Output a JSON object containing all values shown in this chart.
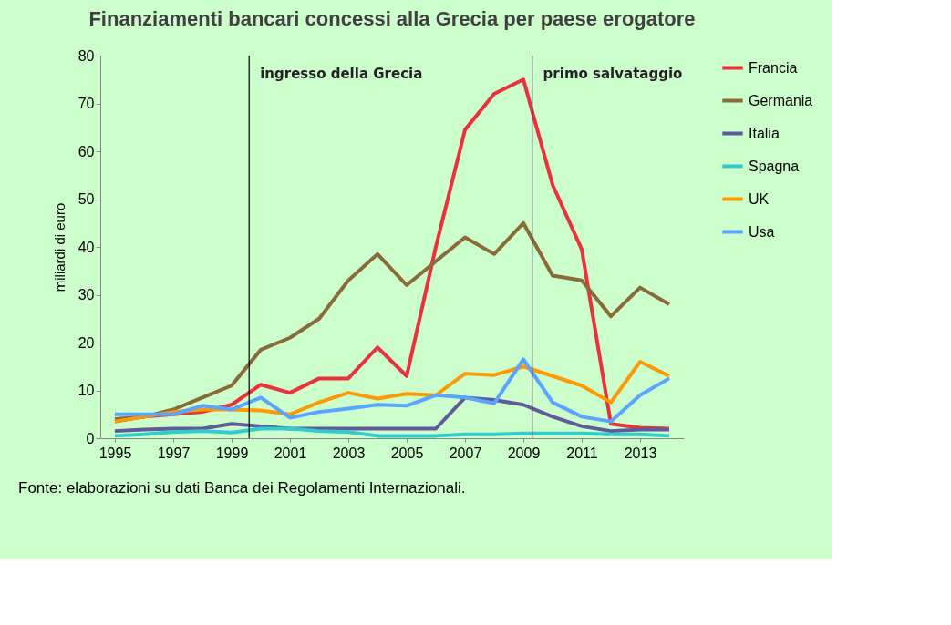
{
  "chart_data": {
    "type": "line",
    "title": "Finanziamenti bancari concessi alla Grecia per paese erogatore",
    "ylabel": "miliardi di euro",
    "x": [
      1995,
      1996,
      1997,
      1998,
      1999,
      2000,
      2001,
      2002,
      2003,
      2004,
      2005,
      2006,
      2007,
      2008,
      2009,
      2010,
      2011,
      2012,
      2013,
      2014
    ],
    "series": [
      {
        "name": "Francia",
        "color": "#e8323c",
        "values": [
          3.5,
          4.5,
          5,
          5.5,
          7,
          11.2,
          9.5,
          12.5,
          12.5,
          19,
          13,
          40,
          64.5,
          72,
          75,
          53,
          39.5,
          3,
          2.2,
          2
        ]
      },
      {
        "name": "Germania",
        "color": "#8b6a3a",
        "values": [
          4,
          4.5,
          6,
          8.5,
          11,
          18.5,
          21,
          25,
          33,
          38.5,
          32,
          37,
          42,
          38.5,
          45,
          34,
          33,
          25.5,
          31.5,
          28
        ]
      },
      {
        "name": "Italia",
        "color": "#5f5a9a",
        "values": [
          1.5,
          1.8,
          2,
          2,
          3,
          2.5,
          2,
          2,
          2,
          2,
          2,
          2,
          8.5,
          8,
          7,
          4.5,
          2.5,
          1.5,
          1.8,
          1.8
        ]
      },
      {
        "name": "Spagna",
        "color": "#33cccc",
        "values": [
          0.5,
          0.8,
          1.3,
          1.5,
          1.2,
          2,
          2,
          1.5,
          1.3,
          0.5,
          0.5,
          0.5,
          0.8,
          0.8,
          1,
          1,
          1,
          0.8,
          0.8,
          0.5
        ]
      },
      {
        "name": "UK",
        "color": "#ff9900",
        "values": [
          3.5,
          4.5,
          5.5,
          6,
          6,
          5.8,
          5,
          7.5,
          9.5,
          8.3,
          9.3,
          9,
          13.5,
          13.2,
          15,
          13,
          11,
          7.5,
          16,
          13
        ]
      },
      {
        "name": "Usa",
        "color": "#5aa5ff",
        "values": [
          5,
          5,
          5,
          6.8,
          6,
          8.5,
          4.3,
          5.5,
          6.2,
          7,
          6.8,
          9,
          8.5,
          7.3,
          16.5,
          7.5,
          4.5,
          3.5,
          9,
          12.5
        ]
      }
    ],
    "xlim": [
      1994.5,
      2014.5
    ],
    "xticks": [
      1995,
      1997,
      1999,
      2001,
      2003,
      2005,
      2007,
      2009,
      2011,
      2013
    ],
    "ylim": [
      0,
      80
    ],
    "yticks": [
      0,
      10,
      20,
      30,
      40,
      50,
      60,
      70,
      80
    ],
    "ref_lines": [
      {
        "axis": "x",
        "value": 1999.6,
        "label": "ingresso della Grecia",
        "color": "#000000"
      },
      {
        "axis": "x",
        "value": 2009.3,
        "label": "primo salvataggio",
        "color": "#000000"
      }
    ],
    "annotations": [
      "Fonte: elaborazioni su dati Banca dei Regolamenti Internazionali."
    ],
    "legend": "right",
    "grid": false
  }
}
